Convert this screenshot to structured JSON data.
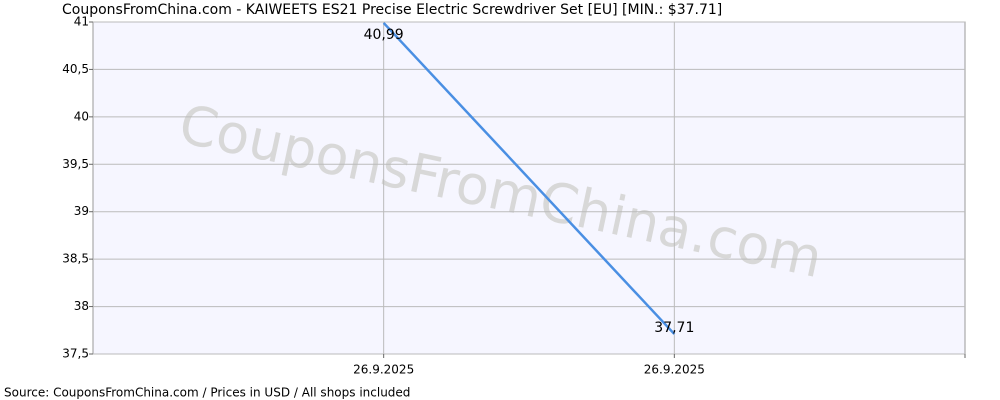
{
  "chart_data": {
    "type": "line",
    "title": "CouponsFromChina.com - KAIWEETS ES21 Precise Electric Screwdriver Set [EU] [MIN.: $37.71]",
    "watermark": "CouponsFromChina.com",
    "source": "Source: CouponsFromChina.com / Prices in USD / All shops included",
    "categories": [
      "26.9.2025",
      "26.9.2025"
    ],
    "series": [
      {
        "color": "#4a8fe3",
        "values": [
          40.99,
          37.71
        ],
        "value_labels": [
          "40,99",
          "37,71"
        ]
      }
    ],
    "ylim": [
      37.5,
      41
    ],
    "yticks": [
      {
        "value": 37.5,
        "label": "37,5"
      },
      38,
      {
        "value": 38.5,
        "label": "38,5"
      },
      39,
      {
        "value": 39.5,
        "label": "39,5"
      },
      40,
      {
        "value": 40.5,
        "label": "40,5"
      },
      41
    ],
    "grid": true
  }
}
